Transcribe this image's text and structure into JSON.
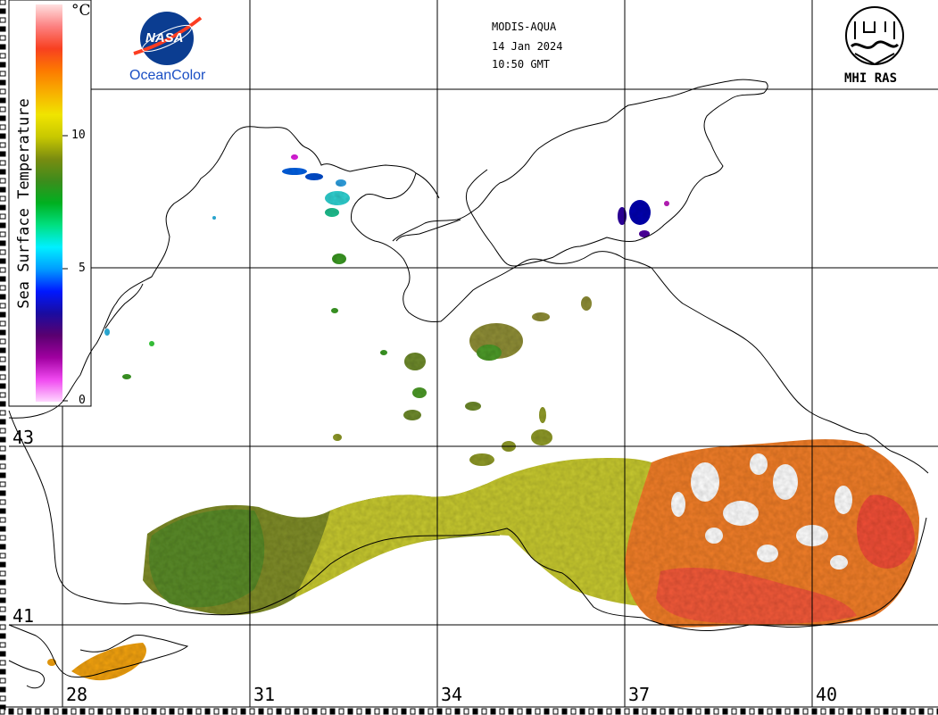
{
  "header": {
    "satellite": "MODIS-AQUA",
    "date": "14 Jan 2024",
    "time": "10:50 GMT"
  },
  "logos": {
    "nasa_text": "NASA",
    "oceancolor_text": "OceanColor",
    "mhi_text": "MHI RAS"
  },
  "colorbar": {
    "title": "Sea Surface Temperature",
    "unit": "°C",
    "ticks": [
      "0",
      "5",
      "10"
    ],
    "min": 0,
    "max": 15,
    "stops": [
      "#ffd6ff",
      "#f048f0",
      "#a000a0",
      "#5a0070",
      "#1a0ca0",
      "#0018ff",
      "#009cff",
      "#00f0ff",
      "#00e080",
      "#00b020",
      "#3c8c1c",
      "#7a8c10",
      "#c8c800",
      "#f0e400",
      "#f8b000",
      "#fc7a00",
      "#f84020",
      "#fc8080",
      "#ffe0e0"
    ]
  },
  "grid": {
    "latitude_labels": [
      "43",
      "41"
    ],
    "longitude_labels": [
      "28",
      "31",
      "34",
      "37",
      "40"
    ]
  },
  "colors": {
    "cold": "#0a0aa0",
    "cyan": "#30e0d0",
    "green": "#3c9a28",
    "olive": "#8f9a2a",
    "yellow": "#d7d815",
    "orange": "#f07a28",
    "red": "#f04830"
  }
}
